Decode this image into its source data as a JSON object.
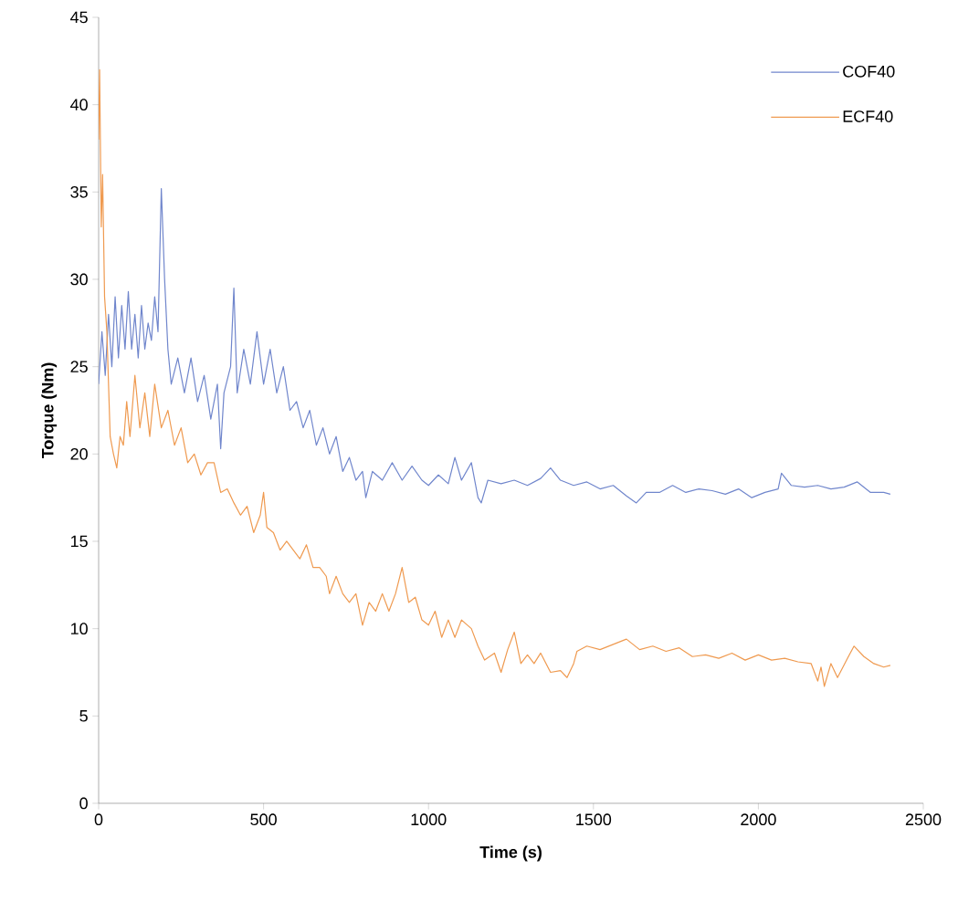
{
  "chart_data": {
    "type": "line",
    "xlabel": "Time (s)",
    "ylabel": "Torque (Nm)",
    "xlim": [
      0,
      2500
    ],
    "ylim": [
      0,
      45
    ],
    "xticks": [
      0,
      500,
      1000,
      1500,
      2000,
      2500
    ],
    "yticks": [
      0,
      5,
      10,
      15,
      20,
      25,
      30,
      35,
      40,
      45
    ],
    "grid": false,
    "legend": "top right",
    "marker": "none",
    "line_style": "solid",
    "series": [
      {
        "name": "COF40",
        "color": "#7086cc",
        "x": [
          0,
          10,
          20,
          30,
          40,
          50,
          60,
          70,
          80,
          90,
          100,
          110,
          120,
          130,
          140,
          150,
          160,
          170,
          180,
          190,
          200,
          210,
          220,
          240,
          260,
          280,
          300,
          320,
          340,
          360,
          370,
          380,
          400,
          410,
          420,
          440,
          460,
          480,
          500,
          520,
          540,
          560,
          580,
          600,
          620,
          640,
          660,
          680,
          700,
          720,
          740,
          760,
          780,
          800,
          810,
          830,
          860,
          890,
          920,
          950,
          980,
          1000,
          1030,
          1060,
          1080,
          1100,
          1130,
          1150,
          1160,
          1180,
          1220,
          1260,
          1300,
          1340,
          1370,
          1400,
          1440,
          1480,
          1520,
          1560,
          1600,
          1630,
          1660,
          1700,
          1740,
          1780,
          1820,
          1860,
          1900,
          1940,
          1980,
          2020,
          2060,
          2070,
          2100,
          2140,
          2180,
          2220,
          2260,
          2300,
          2340,
          2380,
          2400
        ],
        "values": [
          24,
          27,
          24.5,
          28,
          25,
          29,
          25.5,
          28.5,
          26,
          29.3,
          26,
          28,
          25.5,
          28.5,
          26,
          27.5,
          26.5,
          29,
          27,
          35.2,
          30,
          26,
          24,
          25.5,
          23.5,
          25.5,
          23,
          24.5,
          22,
          24,
          20.3,
          23.5,
          25,
          29.5,
          23.5,
          26,
          24,
          27,
          24,
          26,
          23.5,
          25,
          22.5,
          23,
          21.5,
          22.5,
          20.5,
          21.5,
          20,
          21,
          19,
          19.8,
          18.5,
          19,
          17.5,
          19,
          18.5,
          19.5,
          18.5,
          19.3,
          18.5,
          18.2,
          18.8,
          18.3,
          19.8,
          18.5,
          19.5,
          17.5,
          17.2,
          18.5,
          18.3,
          18.5,
          18.2,
          18.6,
          19.2,
          18.5,
          18.2,
          18.4,
          18,
          18.2,
          17.6,
          17.2,
          17.8,
          17.8,
          18.2,
          17.8,
          18,
          17.9,
          17.7,
          18,
          17.5,
          17.8,
          18,
          18.9,
          18.2,
          18.1,
          18.2,
          18,
          18.1,
          18.4,
          17.8,
          17.8,
          17.7
        ]
      },
      {
        "name": "ECF40",
        "color": "#ef9a50",
        "x": [
          0,
          3,
          8,
          12,
          18,
          25,
          35,
          45,
          55,
          65,
          75,
          85,
          95,
          110,
          125,
          140,
          155,
          170,
          190,
          210,
          230,
          250,
          270,
          290,
          310,
          330,
          350,
          370,
          390,
          410,
          430,
          450,
          470,
          490,
          500,
          510,
          530,
          550,
          570,
          590,
          610,
          630,
          650,
          670,
          690,
          700,
          720,
          740,
          760,
          780,
          800,
          820,
          840,
          860,
          880,
          900,
          920,
          940,
          960,
          980,
          1000,
          1020,
          1040,
          1060,
          1080,
          1100,
          1130,
          1150,
          1170,
          1200,
          1220,
          1240,
          1260,
          1280,
          1300,
          1320,
          1340,
          1370,
          1400,
          1420,
          1440,
          1450,
          1480,
          1520,
          1560,
          1600,
          1640,
          1680,
          1720,
          1760,
          1800,
          1840,
          1880,
          1920,
          1960,
          2000,
          2040,
          2080,
          2120,
          2160,
          2180,
          2190,
          2200,
          2220,
          2240,
          2270,
          2290,
          2320,
          2350,
          2380,
          2400
        ],
        "values": [
          38,
          42,
          33,
          36,
          29,
          27,
          21,
          20,
          19.2,
          21,
          20.5,
          23,
          21,
          24.5,
          21.5,
          23.5,
          21,
          24,
          21.5,
          22.5,
          20.5,
          21.5,
          19.5,
          20,
          18.8,
          19.5,
          19.5,
          17.8,
          18,
          17.2,
          16.5,
          17,
          15.5,
          16.5,
          17.8,
          15.8,
          15.5,
          14.5,
          15,
          14.5,
          14,
          14.8,
          13.5,
          13.5,
          13,
          12,
          13,
          12,
          11.5,
          12,
          10.2,
          11.5,
          11,
          12,
          11,
          12,
          13.5,
          11.5,
          11.8,
          10.5,
          10.2,
          11,
          9.5,
          10.5,
          9.5,
          10.5,
          10,
          9,
          8.2,
          8.6,
          7.5,
          8.8,
          9.8,
          8,
          8.5,
          8,
          8.6,
          7.5,
          7.6,
          7.2,
          8,
          8.7,
          9,
          8.8,
          9.1,
          9.4,
          8.8,
          9,
          8.7,
          8.9,
          8.4,
          8.5,
          8.3,
          8.6,
          8.2,
          8.5,
          8.2,
          8.3,
          8.1,
          8,
          7,
          7.8,
          6.7,
          8,
          7.2,
          8.3,
          9,
          8.4,
          8,
          7.8,
          7.9
        ]
      }
    ]
  }
}
